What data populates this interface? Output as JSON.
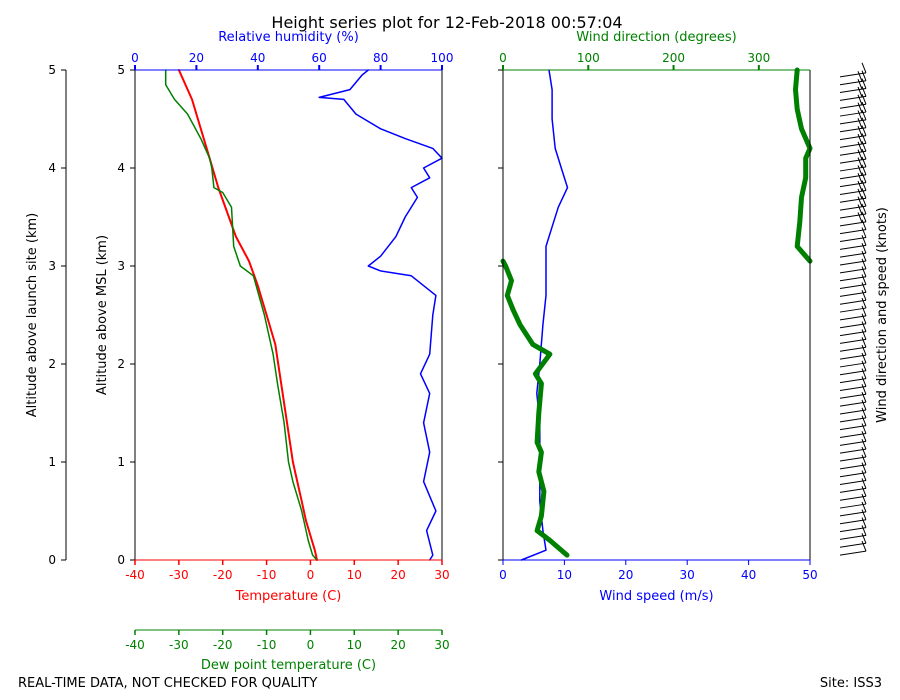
{
  "chart_data": {
    "type": "line",
    "title": "Height series plot for 12-Feb-2018 00:57:04",
    "footer_left": "REAL-TIME DATA, NOT CHECKED FOR QUALITY",
    "footer_right": "Site: ISS3",
    "colors": {
      "temperature": "#ff0000",
      "dewpoint": "#008000",
      "humidity": "#0000ff",
      "wind_speed": "#0000ff",
      "wind_direction": "#008000",
      "barbs": "#000000"
    },
    "axes": {
      "altitude_site": {
        "label": "Altitude above launch site (km)",
        "range": [
          0,
          5
        ],
        "ticks": [
          0,
          1,
          2,
          3,
          4,
          5
        ]
      },
      "altitude_msl": {
        "label": "Altitude above MSL (km)",
        "range": [
          0,
          5
        ],
        "ticks": [
          0,
          1,
          2,
          3,
          4,
          5
        ]
      },
      "temperature": {
        "label": "Temperature (C)",
        "range": [
          -40,
          30
        ],
        "ticks": [
          -40,
          -30,
          -20,
          -10,
          0,
          10,
          20,
          30
        ]
      },
      "dewpoint": {
        "label": "Dew point temperature (C)",
        "range": [
          -40,
          30
        ],
        "ticks": [
          -40,
          -30,
          -20,
          -10,
          0,
          10,
          20,
          30
        ]
      },
      "humidity": {
        "label": "Relative humidity (%)",
        "range": [
          0,
          100
        ],
        "ticks": [
          0,
          20,
          40,
          60,
          80,
          100
        ]
      },
      "wind_direction": {
        "label": "Wind direction (degrees)",
        "range": [
          0,
          360
        ],
        "ticks": [
          0,
          100,
          200,
          300
        ]
      },
      "wind_speed": {
        "label": "Wind speed (m/s)",
        "range": [
          0,
          50
        ],
        "ticks": [
          0,
          10,
          20,
          30,
          40,
          50
        ]
      },
      "barbs": {
        "label": "Wind direction and speed (knots)"
      }
    },
    "series": [
      {
        "name": "Temperature",
        "unit": "C",
        "axis": "temperature",
        "points": [
          [
            1.5,
            0.0
          ],
          [
            1.0,
            0.1
          ],
          [
            0.0,
            0.25
          ],
          [
            -1.0,
            0.4
          ],
          [
            -2.0,
            0.6
          ],
          [
            -3.0,
            0.8
          ],
          [
            -4.0,
            1.0
          ],
          [
            -5.0,
            1.3
          ],
          [
            -6.0,
            1.6
          ],
          [
            -7.0,
            1.9
          ],
          [
            -8.0,
            2.2
          ],
          [
            -10.0,
            2.5
          ],
          [
            -12.0,
            2.8
          ],
          [
            -14.0,
            3.05
          ],
          [
            -17.0,
            3.3
          ],
          [
            -19.0,
            3.55
          ],
          [
            -21.0,
            3.8
          ],
          [
            -23.0,
            4.1
          ],
          [
            -25.0,
            4.4
          ],
          [
            -27.0,
            4.7
          ],
          [
            -30.0,
            5.0
          ]
        ]
      },
      {
        "name": "Dew point",
        "unit": "C",
        "axis": "dewpoint",
        "points": [
          [
            1.5,
            0.0
          ],
          [
            0.5,
            0.05
          ],
          [
            -0.5,
            0.2
          ],
          [
            -2.0,
            0.5
          ],
          [
            -4.0,
            0.8
          ],
          [
            -5.0,
            1.0
          ],
          [
            -6.0,
            1.4
          ],
          [
            -7.5,
            1.8
          ],
          [
            -8.5,
            2.1
          ],
          [
            -10.5,
            2.5
          ],
          [
            -13.0,
            2.9
          ],
          [
            -16.0,
            3.0
          ],
          [
            -17.5,
            3.2
          ],
          [
            -18.0,
            3.6
          ],
          [
            -20.0,
            3.75
          ],
          [
            -22.0,
            3.8
          ],
          [
            -22.5,
            4.0
          ],
          [
            -23.0,
            4.1
          ],
          [
            -25.0,
            4.3
          ],
          [
            -28.0,
            4.55
          ],
          [
            -31.0,
            4.7
          ],
          [
            -33.0,
            4.85
          ],
          [
            -33.0,
            5.0
          ]
        ]
      },
      {
        "name": "Relative humidity",
        "unit": "%",
        "axis": "humidity",
        "points": [
          [
            96,
            0.0
          ],
          [
            97,
            0.05
          ],
          [
            95,
            0.3
          ],
          [
            98,
            0.5
          ],
          [
            94,
            0.8
          ],
          [
            96,
            1.1
          ],
          [
            94,
            1.4
          ],
          [
            96,
            1.7
          ],
          [
            93,
            1.9
          ],
          [
            96,
            2.1
          ],
          [
            97,
            2.5
          ],
          [
            98,
            2.7
          ],
          [
            90,
            2.9
          ],
          [
            80,
            2.95
          ],
          [
            76,
            3.0
          ],
          [
            80,
            3.1
          ],
          [
            85,
            3.3
          ],
          [
            88,
            3.5
          ],
          [
            92,
            3.7
          ],
          [
            90,
            3.8
          ],
          [
            96,
            3.9
          ],
          [
            94,
            4.0
          ],
          [
            100,
            4.1
          ],
          [
            97,
            4.2
          ],
          [
            88,
            4.3
          ],
          [
            80,
            4.4
          ],
          [
            72,
            4.55
          ],
          [
            68,
            4.7
          ],
          [
            60,
            4.72
          ],
          [
            70,
            4.8
          ],
          [
            74,
            4.95
          ],
          [
            76,
            5.0
          ]
        ]
      },
      {
        "name": "Wind speed",
        "unit": "m/s",
        "axis": "wind_speed",
        "points": [
          [
            3.0,
            0.0
          ],
          [
            7.0,
            0.1
          ],
          [
            6.5,
            0.3
          ],
          [
            6.0,
            0.6
          ],
          [
            6.0,
            1.0
          ],
          [
            6.0,
            1.4
          ],
          [
            5.5,
            1.7
          ],
          [
            6.0,
            2.0
          ],
          [
            6.5,
            2.4
          ],
          [
            7.0,
            2.7
          ],
          [
            7.0,
            3.0
          ],
          [
            7.0,
            3.2
          ],
          [
            8.0,
            3.4
          ],
          [
            9.0,
            3.6
          ],
          [
            10.5,
            3.8
          ],
          [
            9.5,
            4.0
          ],
          [
            8.5,
            4.2
          ],
          [
            8.0,
            4.5
          ],
          [
            8.0,
            4.8
          ],
          [
            7.5,
            5.0
          ]
        ]
      },
      {
        "name": "Wind direction",
        "unit": "degrees",
        "axis": "wind_direction",
        "points": [
          [
            75,
            0.05
          ],
          [
            55,
            0.2
          ],
          [
            40,
            0.3
          ],
          [
            45,
            0.45
          ],
          [
            48,
            0.7
          ],
          [
            42,
            0.9
          ],
          [
            45,
            1.1
          ],
          [
            40,
            1.2
          ],
          [
            42,
            1.5
          ],
          [
            45,
            1.8
          ],
          [
            38,
            1.9
          ],
          [
            55,
            2.1
          ],
          [
            35,
            2.2
          ],
          [
            20,
            2.4
          ],
          [
            12,
            2.55
          ],
          [
            5,
            2.7
          ],
          [
            10,
            2.85
          ],
          [
            3,
            3.0
          ],
          [
            0,
            3.05
          ]
        ]
      },
      {
        "name": "Wind direction (upper)",
        "unit": "degrees",
        "axis": "wind_direction",
        "points": [
          [
            360,
            3.05
          ],
          [
            345,
            3.2
          ],
          [
            348,
            3.45
          ],
          [
            350,
            3.7
          ],
          [
            355,
            3.9
          ],
          [
            355,
            4.1
          ],
          [
            360,
            4.2
          ],
          [
            350,
            4.4
          ],
          [
            345,
            4.6
          ],
          [
            343,
            4.8
          ],
          [
            345,
            5.0
          ]
        ]
      }
    ]
  }
}
